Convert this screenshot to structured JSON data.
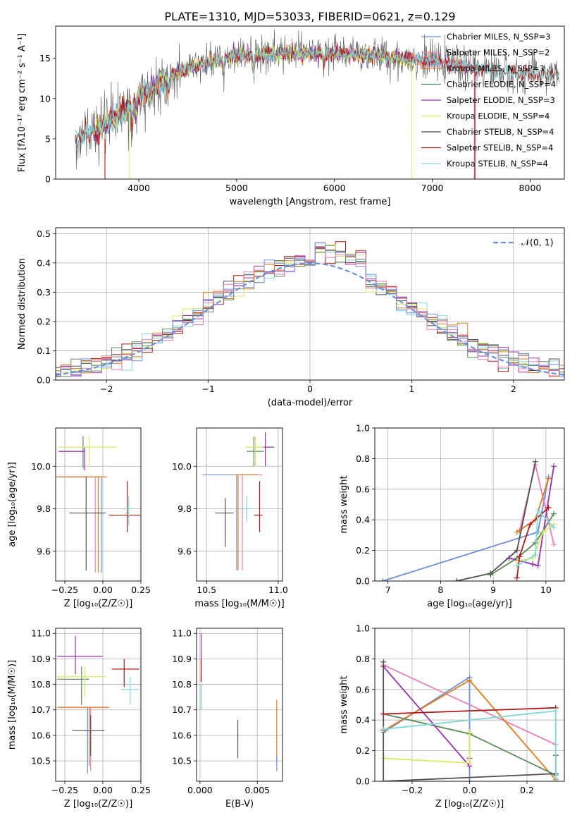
{
  "figure_title": "PLATE=1310, MJD=53033, FIBERID=0621, z=0.129",
  "colors": {
    "chabrier_miles": "#6a8fdc",
    "salpeter_miles": "#e87fb5",
    "kroupa_miles": "#e07a1f",
    "chabrier_elodie": "#5a8a5a",
    "salpeter_elodie": "#9b30b0",
    "kroupa_elodie": "#d7ec5a",
    "chabrier_stelib": "#505050",
    "salpeter_stelib": "#b01818",
    "kroupa_stelib": "#7fd8d8",
    "normal_curve": "#6a8fdc"
  },
  "chart_data": [
    {
      "id": "spectrum",
      "type": "line",
      "title": "",
      "xlabel": "wavelength [Angstrom, rest frame]",
      "ylabel": "Flux [fλ10⁻¹⁷ erg cm⁻² s⁻¹ A⁻¹]",
      "xlim": [
        3150,
        8350
      ],
      "ylim": [
        0,
        19
      ],
      "xticks": [
        4000,
        5000,
        6000,
        7000,
        8000
      ],
      "yticks": [
        0,
        5,
        10,
        15
      ],
      "grid": false,
      "legend_position": "top-right",
      "legend": [
        "Chabrier MILES, N_SSP=3",
        "Salpeter MILES, N_SSP=2",
        "Kroupa MILES, N_SSP=3",
        "Chabrier ELODIE, N_SSP=4",
        "Salpeter ELODIE, N_SSP=3",
        "Kroupa ELODIE, N_SSP=4",
        "Chabrier STELIB, N_SSP=4",
        "Salpeter STELIB, N_SSP=4",
        "Kroupa STELIB, N_SSP=4"
      ],
      "continuum": {
        "x": [
          3350,
          3500,
          3700,
          3900,
          4000,
          4200,
          4500,
          4800,
          5000,
          5500,
          6000,
          6500,
          7000,
          7500,
          8000,
          8300
        ],
        "y": [
          5.3,
          5.8,
          7.0,
          9.2,
          10.4,
          12.0,
          13.8,
          14.8,
          15.2,
          15.6,
          15.6,
          15.3,
          14.6,
          13.7,
          13.0,
          13.0
        ]
      }
    },
    {
      "id": "residuals",
      "type": "histogram",
      "xlabel": "(data-model)/error",
      "ylabel": "Normed distribution",
      "xlim": [
        -2.5,
        2.5
      ],
      "ylim": [
        0,
        0.52
      ],
      "xticks": [
        -2,
        -1,
        0,
        1,
        2
      ],
      "yticks": [
        0.0,
        0.1,
        0.2,
        0.3,
        0.4,
        0.5
      ],
      "grid": true,
      "legend_position": "top-right",
      "legend": [
        "𝒩(0, 1)"
      ],
      "bin_width": 0.1
    },
    {
      "id": "age-vs-z",
      "type": "errorbar",
      "xlabel": "Z [log₁₀(Z/Z☉)]",
      "ylabel": "age  [log₁₀(age/yr)]",
      "xlim": [
        -0.31,
        0.25
      ],
      "ylim": [
        9.46,
        10.18
      ],
      "xticks": [
        -0.25,
        0.0,
        0.25
      ],
      "yticks": [
        9.6,
        9.8,
        10.0
      ],
      "grid": true,
      "points": [
        {
          "series": "chabrier_miles",
          "x": -0.01,
          "y": 9.95,
          "xerr": [
            0.29,
            0.0
          ],
          "yerr": [
            0.45,
            0.0
          ]
        },
        {
          "series": "salpeter_miles",
          "x": -0.05,
          "y": 9.95,
          "xerr": [
            0.26,
            0.06
          ],
          "yerr": [
            0.45,
            0.0
          ]
        },
        {
          "series": "kroupa_miles",
          "x": -0.03,
          "y": 9.95,
          "xerr": [
            0.27,
            0.06
          ],
          "yerr": [
            0.45,
            0.0
          ]
        },
        {
          "series": "chabrier_elodie",
          "x": -0.13,
          "y": 10.07,
          "xerr": [
            0.16,
            0.0
          ],
          "yerr": [
            0.08,
            0.07
          ]
        },
        {
          "series": "salpeter_elodie",
          "x": -0.12,
          "y": 10.07,
          "xerr": [
            0.17,
            0.0
          ],
          "yerr": [
            0.09,
            0.02
          ]
        },
        {
          "series": "kroupa_elodie",
          "x": -0.09,
          "y": 10.09,
          "xerr": [
            0.2,
            0.18
          ],
          "yerr": [
            0.09,
            0.05
          ]
        },
        {
          "series": "chabrier_stelib",
          "x": -0.11,
          "y": 9.78,
          "xerr": [
            0.11,
            0.13
          ],
          "yerr": [
            0.27,
            0.17
          ]
        },
        {
          "series": "salpeter_stelib",
          "x": 0.16,
          "y": 9.77,
          "xerr": [
            0.12,
            0.09
          ],
          "yerr": [
            0.08,
            0.16
          ]
        },
        {
          "series": "kroupa_stelib",
          "x": 0.17,
          "y": 9.8,
          "xerr": [
            0.04,
            0.03
          ],
          "yerr": [
            0.08,
            0.06
          ]
        }
      ]
    },
    {
      "id": "age-vs-mass",
      "type": "errorbar",
      "xlabel": "mass [log₁₀(M/M☉)]",
      "ylabel": "",
      "xlim": [
        10.43,
        11.03
      ],
      "ylim": [
        9.46,
        10.18
      ],
      "xticks": [
        10.5,
        11.0
      ],
      "yticks": [
        9.6,
        9.8,
        10.0
      ],
      "grid": true,
      "points": [
        {
          "series": "chabrier_miles",
          "x": 10.71,
          "y": 9.96,
          "xerr": [
            0.24,
            0.0
          ],
          "yerr": [
            0.45,
            0.0
          ]
        },
        {
          "series": "salpeter_miles",
          "x": 10.75,
          "y": 9.96,
          "xerr": [
            0.01,
            0.14
          ],
          "yerr": [
            0.45,
            0.0
          ]
        },
        {
          "series": "kroupa_miles",
          "x": 10.72,
          "y": 9.96,
          "xerr": [
            0.03,
            0.14
          ],
          "yerr": [
            0.45,
            0.0
          ]
        },
        {
          "series": "chabrier_elodie",
          "x": 10.83,
          "y": 10.07,
          "xerr": [
            0.05,
            0.07
          ],
          "yerr": [
            0.07,
            0.07
          ]
        },
        {
          "series": "salpeter_elodie",
          "x": 10.91,
          "y": 10.09,
          "xerr": [
            0.03,
            0.06
          ],
          "yerr": [
            0.09,
            0.07
          ]
        },
        {
          "series": "kroupa_elodie",
          "x": 10.84,
          "y": 10.09,
          "xerr": [
            0.07,
            0.06
          ],
          "yerr": [
            0.09,
            0.05
          ]
        },
        {
          "series": "chabrier_stelib",
          "x": 10.63,
          "y": 9.78,
          "xerr": [
            0.07,
            0.06
          ],
          "yerr": [
            0.16,
            0.07
          ]
        },
        {
          "series": "salpeter_stelib",
          "x": 10.87,
          "y": 9.77,
          "xerr": [
            0.04,
            0.02
          ],
          "yerr": [
            0.08,
            0.16
          ]
        },
        {
          "series": "kroupa_stelib",
          "x": 10.78,
          "y": 9.8,
          "xerr": [
            0.05,
            0.03
          ],
          "yerr": [
            0.06,
            0.06
          ]
        }
      ]
    },
    {
      "id": "weight-vs-age",
      "type": "line",
      "xlabel": "age  [log₁₀(age/yr)]",
      "ylabel": "mass weight",
      "xlim": [
        6.75,
        10.35
      ],
      "ylim": [
        0,
        1
      ],
      "xticks": [
        7,
        8,
        9,
        10
      ],
      "yticks": [
        0.0,
        0.2,
        0.4,
        0.6,
        0.8,
        1.0
      ],
      "grid": true,
      "series": [
        {
          "name": "chabrier_miles",
          "x": [
            6.9,
            9.85,
            10.05
          ],
          "y": [
            0.0,
            0.32,
            0.68
          ]
        },
        {
          "name": "salpeter_miles",
          "x": [
            9.5,
            9.8,
            10.15
          ],
          "y": [
            0.33,
            0.76,
            0.24
          ]
        },
        {
          "name": "kroupa_miles",
          "x": [
            9.45,
            9.8,
            10.05
          ],
          "y": [
            0.32,
            0.4,
            0.67
          ]
        },
        {
          "name": "chabrier_elodie",
          "x": [
            8.95,
            9.45,
            9.8,
            10.15
          ],
          "y": [
            0.04,
            0.15,
            0.25,
            0.44
          ]
        },
        {
          "name": "salpeter_elodie",
          "x": [
            9.3,
            9.75,
            9.85,
            10.15
          ],
          "y": [
            0.15,
            0.11,
            0.1,
            0.75
          ]
        },
        {
          "name": "kroupa_elodie",
          "x": [
            9.45,
            9.75,
            9.95,
            10.15
          ],
          "y": [
            0.13,
            0.15,
            0.32,
            0.37
          ]
        },
        {
          "name": "chabrier_stelib",
          "x": [
            8.3,
            8.95,
            9.45,
            9.8
          ],
          "y": [
            0.0,
            0.05,
            0.2,
            0.78
          ]
        },
        {
          "name": "salpeter_stelib",
          "x": [
            9.45,
            9.5,
            9.7,
            10.05
          ],
          "y": [
            0.02,
            0.16,
            0.37,
            0.48
          ]
        },
        {
          "name": "kroupa_stelib",
          "x": [
            9.45,
            9.8,
            9.85,
            10.15
          ],
          "y": [
            0.1,
            0.17,
            0.46,
            0.35
          ]
        }
      ]
    },
    {
      "id": "mass-vs-z",
      "type": "errorbar",
      "xlabel": "Z [log₁₀(Z/Z☉)]",
      "ylabel": "mass [log₁₀(M/M☉)]",
      "xlim": [
        -0.31,
        0.25
      ],
      "ylim": [
        10.42,
        11.02
      ],
      "xticks": [
        -0.25,
        0.0,
        0.25
      ],
      "yticks": [
        10.5,
        10.6,
        10.7,
        10.8,
        10.9,
        11.0
      ],
      "grid": true,
      "points": [
        {
          "series": "chabrier_miles",
          "x": -0.1,
          "y": 10.71,
          "xerr": [
            0.18,
            0.14
          ],
          "yerr": [
            0.26,
            0.0
          ]
        },
        {
          "series": "salpeter_miles",
          "x": -0.08,
          "y": 10.71,
          "xerr": [
            0.2,
            0.12
          ],
          "yerr": [
            0.25,
            0.0
          ]
        },
        {
          "series": "kroupa_miles",
          "x": -0.09,
          "y": 10.71,
          "xerr": [
            0.21,
            0.13
          ],
          "yerr": [
            0.23,
            0.0
          ]
        },
        {
          "series": "chabrier_elodie",
          "x": -0.14,
          "y": 10.82,
          "xerr": [
            0.16,
            0.05
          ],
          "yerr": [
            0.1,
            0.05
          ]
        },
        {
          "series": "salpeter_elodie",
          "x": -0.18,
          "y": 10.91,
          "xerr": [
            0.12,
            0.18
          ],
          "yerr": [
            0.07,
            0.08
          ]
        },
        {
          "series": "kroupa_elodie",
          "x": -0.12,
          "y": 10.83,
          "xerr": [
            0.18,
            0.14
          ],
          "yerr": [
            0.08,
            0.04
          ]
        },
        {
          "series": "chabrier_stelib",
          "x": -0.08,
          "y": 10.62,
          "xerr": [
            0.12,
            0.09
          ],
          "yerr": [
            0.1,
            0.06
          ]
        },
        {
          "series": "salpeter_stelib",
          "x": 0.14,
          "y": 10.86,
          "xerr": [
            0.08,
            0.1
          ],
          "yerr": [
            0.07,
            0.04
          ]
        },
        {
          "series": "kroupa_stelib",
          "x": 0.18,
          "y": 10.78,
          "xerr": [
            0.06,
            0.06
          ],
          "yerr": [
            0.06,
            0.05
          ]
        }
      ]
    },
    {
      "id": "mass-vs-ebv",
      "type": "errorbar",
      "xlabel": "E(B-V)",
      "ylabel": "",
      "xlim": [
        -0.0003,
        0.0072
      ],
      "ylim": [
        10.42,
        11.02
      ],
      "xticks": [
        0.0,
        0.005
      ],
      "xticklabels": [
        "0.000",
        "0.005"
      ],
      "yticks": [
        10.5,
        10.6,
        10.7,
        10.8,
        10.9,
        11.0
      ],
      "grid": true,
      "points": [
        {
          "series": "chabrier_miles",
          "x": 0.0001,
          "y": 10.71,
          "xerr": [
            0,
            0
          ],
          "yerr": [
            0.01,
            0.09
          ]
        },
        {
          "series": "salpeter_elodie",
          "x": 0.0001,
          "y": 10.9,
          "xerr": [
            0,
            0
          ],
          "yerr": [
            0.09,
            0.1
          ]
        },
        {
          "series": "salpeter_stelib",
          "x": 0.0001,
          "y": 10.86,
          "xerr": [
            0,
            0
          ],
          "yerr": [
            0.05,
            0.04
          ]
        },
        {
          "series": "kroupa_stelib",
          "x": 0.0001,
          "y": 10.75,
          "xerr": [
            0,
            0
          ],
          "yerr": [
            0.05,
            0.05
          ]
        },
        {
          "series": "chabrier_stelib",
          "x": 0.0033,
          "y": 10.59,
          "xerr": [
            0,
            0
          ],
          "yerr": [
            0.08,
            0.07
          ]
        },
        {
          "series": "kroupa_miles",
          "x": 0.0067,
          "y": 10.6,
          "xerr": [
            0,
            0
          ],
          "yerr": [
            0.1,
            0.14
          ]
        },
        {
          "series": "chabrier_miles",
          "x": 0.0067,
          "y": 10.5,
          "xerr": [
            0,
            0
          ],
          "yerr": [
            0.04,
            0.02
          ]
        }
      ]
    },
    {
      "id": "weight-vs-z",
      "type": "line",
      "xlabel": "Z [log₁₀(Z/Z☉)]",
      "ylabel": "mass weight",
      "xlim": [
        -0.33,
        0.33
      ],
      "ylim": [
        0,
        1
      ],
      "xticks": [
        -0.2,
        0.0,
        0.2
      ],
      "yticks": [
        0.0,
        0.2,
        0.4,
        0.6,
        0.8,
        1.0
      ],
      "grid": true,
      "series": [
        {
          "name": "chabrier_miles",
          "x": [
            -0.3,
            0.0,
            0.0
          ],
          "y": [
            0.32,
            0.68,
            0.0
          ]
        },
        {
          "name": "salpeter_miles",
          "x": [
            -0.3,
            0.3
          ],
          "y": [
            0.76,
            0.24
          ]
        },
        {
          "name": "kroupa_miles",
          "x": [
            -0.3,
            0.0,
            0.3
          ],
          "y": [
            0.33,
            0.66,
            0.01
          ]
        },
        {
          "name": "chabrier_elodie",
          "x": [
            -0.3,
            0.0,
            0.3
          ],
          "y": [
            0.44,
            0.31,
            0.04
          ]
        },
        {
          "name": "salpeter_elodie",
          "x": [
            -0.3,
            0.0,
            0.0
          ],
          "y": [
            0.75,
            0.1,
            0.15
          ]
        },
        {
          "name": "kroupa_elodie",
          "x": [
            -0.3,
            0.0,
            0.0
          ],
          "y": [
            0.15,
            0.12,
            0.32
          ]
        },
        {
          "name": "chabrier_stelib",
          "x": [
            -0.3,
            -0.3,
            0.3,
            0.3
          ],
          "y": [
            0.78,
            0.0,
            0.05,
            0.17
          ]
        },
        {
          "name": "salpeter_stelib",
          "x": [
            -0.3,
            0.3
          ],
          "y": [
            0.44,
            0.48
          ]
        },
        {
          "name": "kroupa_stelib",
          "x": [
            -0.3,
            0.3,
            0.3
          ],
          "y": [
            0.34,
            0.46,
            0.02
          ]
        }
      ]
    }
  ]
}
